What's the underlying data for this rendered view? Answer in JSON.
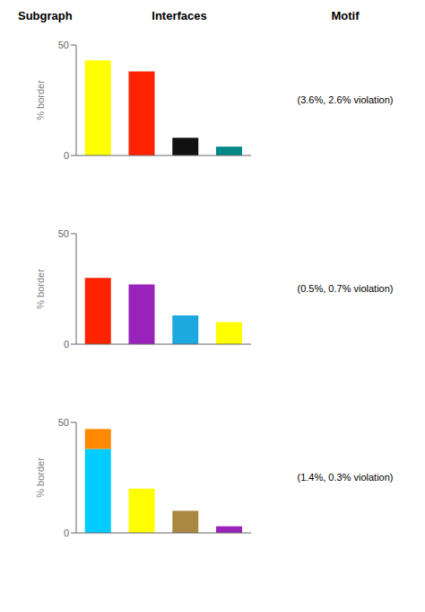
{
  "chart_data": [
    {
      "type": "bar",
      "title": "Interfaces",
      "annotations": [
        "Subgraph",
        "Motif",
        "(3.6%, 2.6% violation)"
      ],
      "ylabel": "% border",
      "categories": [
        null,
        null,
        null,
        null
      ],
      "values": [
        43,
        38,
        8,
        4
      ],
      "colors": [
        "#FFFF00",
        "#FF2200",
        "#111111",
        "#008888"
      ],
      "ylim": [
        0,
        50
      ],
      "yticks": [
        0,
        50
      ]
    },
    {
      "type": "bar",
      "annotations": [
        "(0.5%, 0.7% violation)"
      ],
      "ylabel": "% border",
      "categories": [
        null,
        null,
        null,
        null
      ],
      "values": [
        30,
        27,
        13,
        10
      ],
      "colors": [
        "#FF2200",
        "#9922BB",
        "#1EA8E0",
        "#FFFF00"
      ],
      "ylim": [
        0,
        50
      ],
      "yticks": [
        0,
        50
      ]
    },
    {
      "type": "bar",
      "stacked": true,
      "annotations": [
        "(1.4%, 0.3% violation)"
      ],
      "ylabel": "% border",
      "categories": [
        null,
        null,
        null,
        null
      ],
      "series": [
        {
          "values": [
            38,
            20,
            10,
            3
          ],
          "colors": [
            "#00CCFF",
            "#FFFF00",
            "#AA8844",
            "#9922BB"
          ]
        },
        {
          "values": [
            9,
            0,
            0,
            0
          ],
          "color": "#FF8800"
        }
      ],
      "ylim": [
        0,
        50
      ],
      "yticks": [
        0,
        50
      ]
    }
  ]
}
